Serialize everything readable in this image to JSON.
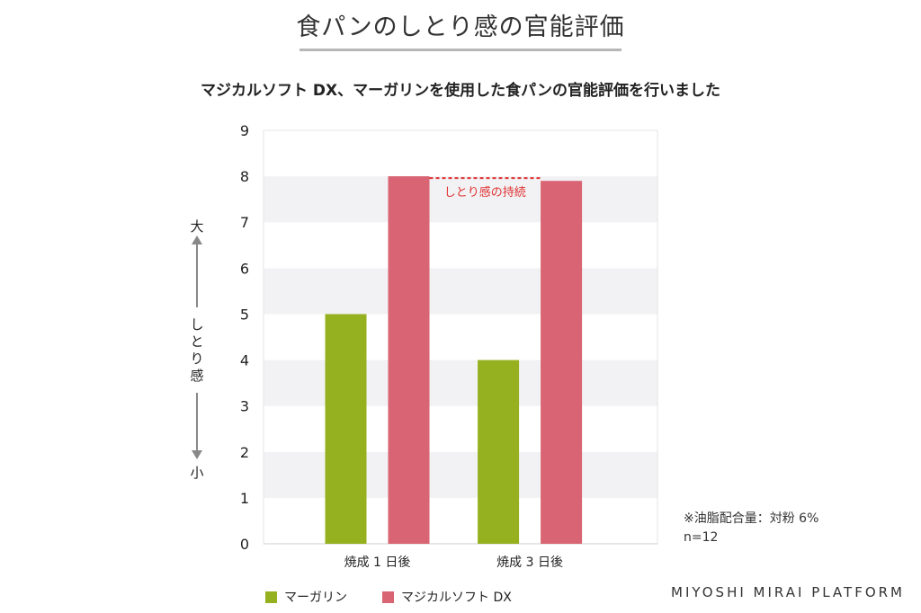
{
  "header": {
    "title": "食パンのしとり感の官能評価",
    "subtitle": "マジカルソフト DX、マーガリンを使用した食パンの官能評価を行いました"
  },
  "axis_note": {
    "top": "大",
    "middle": "しとり感",
    "bottom": "小"
  },
  "notes": {
    "fat_ratio": "※油脂配合量：対粉 6%",
    "sample_size": "n=12"
  },
  "brand": "MIYOSHI MIRAI PLATFORM",
  "chart_data": {
    "type": "bar",
    "categories": [
      "焼成 1 日後",
      "焼成 3 日後"
    ],
    "series": [
      {
        "name": "マーガリン",
        "values": [
          5,
          4
        ],
        "color": "#95b11f"
      },
      {
        "name": "マジカルソフト DX",
        "values": [
          8,
          7.9
        ],
        "color": "#d96473"
      }
    ],
    "ylim": [
      0,
      9
    ],
    "yticks": [
      0,
      1,
      2,
      3,
      4,
      5,
      6,
      7,
      8,
      9
    ],
    "grid": "alternating-bands",
    "legend": "bottom",
    "annotation": {
      "text": "しとり感の持続",
      "color": "#e03030",
      "between": "series 2, both categories"
    }
  }
}
